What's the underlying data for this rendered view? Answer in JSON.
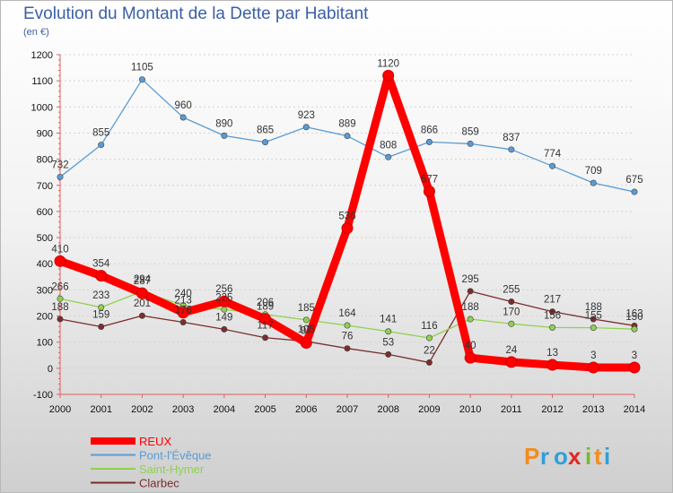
{
  "title": "Evolution du Montant de la Dette par Habitant",
  "unit": "(en €)",
  "logo": {
    "text": "Proxiti",
    "letters": [
      "P",
      "r",
      "o",
      "x",
      "i",
      "t",
      "i"
    ],
    "colors": [
      "#f28c1e",
      "#2f9fd8",
      "#2f9fd8",
      "#e52521",
      "#7ab929",
      "#f28c1e",
      "#2f9fd8"
    ]
  },
  "chart_data": {
    "type": "line",
    "title": "Evolution du Montant de la Dette par Habitant",
    "ylabel": "(en €)",
    "xlabel": "",
    "x": [
      "2000",
      "2001",
      "2002",
      "2003",
      "2004",
      "2005",
      "2006",
      "2007",
      "2008",
      "2009",
      "2010",
      "2011",
      "2012",
      "2013",
      "2014"
    ],
    "ylim": [
      -100,
      1200
    ],
    "yticks": [
      -100,
      0,
      100,
      200,
      300,
      400,
      500,
      600,
      700,
      800,
      900,
      1000,
      1100,
      1200
    ],
    "grid": "horizontal",
    "legend_position": "bottom-left",
    "series": [
      {
        "name": "REUX",
        "color": "#ff0000",
        "values": [
          410,
          354,
          287,
          213,
          256,
          189,
          97,
          536,
          1120,
          677,
          40,
          24,
          13,
          3,
          3
        ]
      },
      {
        "name": "Pont-l'Évêque",
        "color": "#5b9bd5",
        "values": [
          732,
          855,
          1105,
          960,
          890,
          865,
          923,
          889,
          808,
          866,
          859,
          837,
          774,
          709,
          675
        ]
      },
      {
        "name": "Saint-Hymer",
        "color": "#8fd14f",
        "values": [
          266,
          233,
          294,
          240,
          225,
          206,
          185,
          164,
          141,
          116,
          188,
          170,
          156,
          155,
          150
        ]
      },
      {
        "name": "Clarbec",
        "color": "#7b2d2d",
        "values": [
          188,
          159,
          201,
          176,
          149,
          117,
          103,
          76,
          53,
          22,
          295,
          255,
          217,
          188,
          163
        ]
      }
    ]
  }
}
